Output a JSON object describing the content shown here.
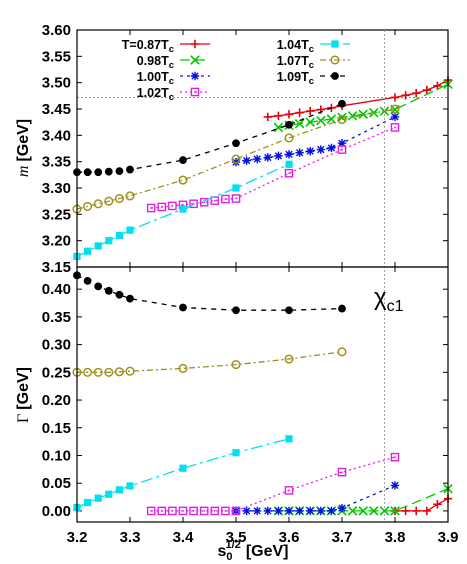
{
  "chart_data": [
    {
      "type": "line",
      "panel": "mass",
      "ylabel_var": "m",
      "ylabel_unit": "[GeV]",
      "xlim": [
        3.2,
        3.9
      ],
      "ylim": [
        3.15,
        3.6
      ],
      "yticks": [
        "3.15",
        "3.20",
        "3.25",
        "3.30",
        "3.35",
        "3.40",
        "3.45",
        "3.50",
        "3.55",
        "3.60"
      ],
      "reference_line_y": 3.472,
      "legend_position": "top",
      "series": [
        {
          "name": "T=0.87T_c",
          "color": "#e8000b",
          "marker": "plus",
          "dash": "",
          "x": [
            3.56,
            3.58,
            3.6,
            3.62,
            3.64,
            3.66,
            3.68,
            3.7,
            3.8,
            3.82,
            3.84,
            3.86,
            3.88,
            3.9
          ],
          "y": [
            3.435,
            3.437,
            3.44,
            3.443,
            3.446,
            3.449,
            3.452,
            3.456,
            3.472,
            3.476,
            3.48,
            3.486,
            3.494,
            3.505
          ]
        },
        {
          "name": "0.98T_c",
          "color": "#00c800",
          "marker": "x",
          "dash": "10,5",
          "x": [
            3.58,
            3.6,
            3.62,
            3.64,
            3.66,
            3.68,
            3.7,
            3.72,
            3.74,
            3.76,
            3.78,
            3.8,
            3.9
          ],
          "y": [
            3.415,
            3.419,
            3.422,
            3.425,
            3.428,
            3.431,
            3.434,
            3.437,
            3.44,
            3.443,
            3.446,
            3.449,
            3.497
          ]
        },
        {
          "name": "1.00T_c",
          "color": "#0010e0",
          "marker": "star",
          "dash": "3,4",
          "x": [
            3.5,
            3.52,
            3.54,
            3.56,
            3.58,
            3.6,
            3.62,
            3.64,
            3.66,
            3.68,
            3.7,
            3.8
          ],
          "y": [
            3.349,
            3.352,
            3.355,
            3.358,
            3.361,
            3.364,
            3.367,
            3.37,
            3.373,
            3.376,
            3.385,
            3.435
          ]
        },
        {
          "name": "1.02T_c",
          "color": "#e020e0",
          "marker": "boxdot",
          "dash": "2,3",
          "x": [
            3.34,
            3.36,
            3.38,
            3.4,
            3.42,
            3.44,
            3.46,
            3.48,
            3.5,
            3.6,
            3.7,
            3.8
          ],
          "y": [
            3.262,
            3.264,
            3.266,
            3.268,
            3.27,
            3.273,
            3.276,
            3.279,
            3.28,
            3.328,
            3.373,
            3.415
          ]
        },
        {
          "name": "1.04T_c",
          "color": "#00e0f0",
          "marker": "square",
          "dash": "12,4,3,4",
          "x": [
            3.2,
            3.22,
            3.24,
            3.26,
            3.28,
            3.3,
            3.4,
            3.5,
            3.6
          ],
          "y": [
            3.17,
            3.18,
            3.19,
            3.2,
            3.21,
            3.22,
            3.26,
            3.3,
            3.345
          ]
        },
        {
          "name": "1.07T_c",
          "color": "#a09020",
          "marker": "circle",
          "dash": "6,3,2,3",
          "x": [
            3.2,
            3.22,
            3.24,
            3.26,
            3.28,
            3.3,
            3.4,
            3.5,
            3.6,
            3.7,
            3.8
          ],
          "y": [
            3.26,
            3.265,
            3.27,
            3.275,
            3.28,
            3.285,
            3.315,
            3.355,
            3.395,
            3.43,
            3.45
          ]
        },
        {
          "name": "1.09T_c",
          "color": "#000000",
          "marker": "dot",
          "dash": "5,5",
          "x": [
            3.2,
            3.22,
            3.24,
            3.26,
            3.28,
            3.3,
            3.4,
            3.5,
            3.6,
            3.7
          ],
          "y": [
            3.33,
            3.33,
            3.33,
            3.331,
            3.332,
            3.335,
            3.353,
            3.385,
            3.42,
            3.46
          ]
        }
      ]
    },
    {
      "type": "line",
      "panel": "width",
      "ylabel_var": "Γ",
      "ylabel_unit": "[GeV]",
      "xlim": [
        3.2,
        3.9
      ],
      "ylim": [
        -0.02,
        0.44
      ],
      "yticks": [
        "0.00",
        "0.05",
        "0.10",
        "0.15",
        "0.20",
        "0.25",
        "0.30",
        "0.35",
        "0.40"
      ],
      "xticks": [
        "3.2",
        "3.3",
        "3.4",
        "3.5",
        "3.6",
        "3.7",
        "3.8",
        "3.9"
      ],
      "xlabel_base": "s",
      "xlabel_sub": "0",
      "xlabel_sup": "1/2",
      "xlabel_unit": "[GeV]",
      "reference_line_x": 3.78,
      "label_main": "χ",
      "label_sub": "c1",
      "series": [
        {
          "name": "T=0.87T_c",
          "color": "#e8000b",
          "marker": "plus",
          "dash": "",
          "x": [
            3.8,
            3.82,
            3.84,
            3.86,
            3.88,
            3.9
          ],
          "y": [
            0,
            0,
            0,
            0,
            0.012,
            0.022
          ]
        },
        {
          "name": "0.98T_c",
          "color": "#00c800",
          "marker": "x",
          "dash": "10,5",
          "x": [
            3.58,
            3.6,
            3.62,
            3.64,
            3.66,
            3.68,
            3.7,
            3.72,
            3.74,
            3.76,
            3.78,
            3.8,
            3.9
          ],
          "y": [
            0,
            0,
            0,
            0,
            0,
            0,
            0,
            0,
            0,
            0,
            0,
            0,
            0.04
          ]
        },
        {
          "name": "1.00T_c",
          "color": "#0010e0",
          "marker": "star",
          "dash": "3,4",
          "x": [
            3.5,
            3.52,
            3.54,
            3.56,
            3.58,
            3.6,
            3.62,
            3.64,
            3.66,
            3.68,
            3.7,
            3.8
          ],
          "y": [
            0,
            0,
            0,
            0,
            0,
            0,
            0,
            0,
            0,
            0,
            0.005,
            0.046
          ]
        },
        {
          "name": "1.02T_c",
          "color": "#e020e0",
          "marker": "boxdot",
          "dash": "2,3",
          "x": [
            3.34,
            3.36,
            3.38,
            3.4,
            3.42,
            3.44,
            3.46,
            3.48,
            3.5,
            3.6,
            3.7,
            3.8
          ],
          "y": [
            0,
            0,
            0,
            0,
            0,
            0,
            0,
            0,
            0,
            0.037,
            0.07,
            0.097
          ]
        },
        {
          "name": "1.04T_c",
          "color": "#00e0f0",
          "marker": "square",
          "dash": "12,4,3,4",
          "x": [
            3.2,
            3.22,
            3.24,
            3.26,
            3.28,
            3.3,
            3.4,
            3.5,
            3.6
          ],
          "y": [
            0.006,
            0.015,
            0.023,
            0.03,
            0.038,
            0.045,
            0.077,
            0.105,
            0.13
          ]
        },
        {
          "name": "1.07T_c",
          "color": "#a09020",
          "marker": "circle",
          "dash": "6,3,2,3",
          "x": [
            3.2,
            3.22,
            3.24,
            3.26,
            3.28,
            3.3,
            3.4,
            3.5,
            3.6,
            3.7
          ],
          "y": [
            0.25,
            0.25,
            0.25,
            0.25,
            0.251,
            0.252,
            0.257,
            0.264,
            0.274,
            0.287
          ]
        },
        {
          "name": "1.09T_c",
          "color": "#000000",
          "marker": "dot",
          "dash": "5,5",
          "x": [
            3.2,
            3.22,
            3.24,
            3.26,
            3.28,
            3.3,
            3.4,
            3.5,
            3.6,
            3.7
          ],
          "y": [
            0.425,
            0.415,
            0.405,
            0.397,
            0.39,
            0.383,
            0.367,
            0.362,
            0.362,
            0.365
          ]
        }
      ]
    }
  ],
  "legend": [
    {
      "base": "T=0.87T",
      "sub": "c",
      "color": "#e8000b",
      "marker": "plus",
      "dash": ""
    },
    {
      "base": "0.98T",
      "sub": "c",
      "color": "#00c800",
      "marker": "x",
      "dash": "10,5"
    },
    {
      "base": "1.00T",
      "sub": "c",
      "color": "#0010e0",
      "marker": "star",
      "dash": "3,4"
    },
    {
      "base": "1.02T",
      "sub": "c",
      "color": "#e020e0",
      "marker": "boxdot",
      "dash": "2,3"
    },
    {
      "base": "1.04T",
      "sub": "c",
      "color": "#00e0f0",
      "marker": "square",
      "dash": "12,4,3,4"
    },
    {
      "base": "1.07T",
      "sub": "c",
      "color": "#a09020",
      "marker": "circle",
      "dash": "6,3,2,3"
    },
    {
      "base": "1.09T",
      "sub": "c",
      "color": "#000000",
      "marker": "dot",
      "dash": "5,5"
    }
  ]
}
